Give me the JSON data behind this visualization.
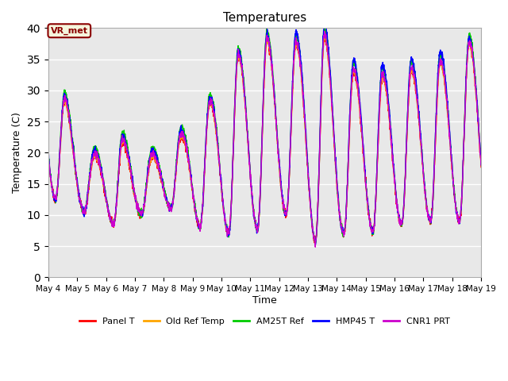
{
  "title": "Temperatures",
  "xlabel": "Time",
  "ylabel": "Temperature (C)",
  "ylim": [
    0,
    40
  ],
  "background_color": "#e8e8e8",
  "annotation_text": "VR_met",
  "annotation_color": "#8B0000",
  "annotation_bg": "#f5f5dc",
  "series_names": [
    "Panel T",
    "Old Ref Temp",
    "AM25T Ref",
    "HMP45 T",
    "CNR1 PRT"
  ],
  "series_colors": [
    "#ff0000",
    "#ffa500",
    "#00cc00",
    "#0000ff",
    "#cc00cc"
  ],
  "tick_labels": [
    "May 4",
    "May 5",
    "May 6",
    "May 7",
    "May 8",
    "May 9",
    "May 10",
    "May 11",
    "May 12",
    "May 13",
    "May 14",
    "May 15",
    "May 16",
    "May 17",
    "May 18",
    "May 19"
  ],
  "yticks": [
    0,
    5,
    10,
    15,
    20,
    25,
    30,
    35,
    40
  ],
  "day_peaks": [
    29,
    19,
    22,
    19,
    22,
    27,
    35,
    38,
    37,
    39,
    33,
    32,
    33,
    34,
    37
  ],
  "day_mins": [
    12,
    10,
    8,
    11,
    11,
    7,
    7,
    8,
    11,
    4,
    8,
    7,
    9,
    9,
    9
  ]
}
